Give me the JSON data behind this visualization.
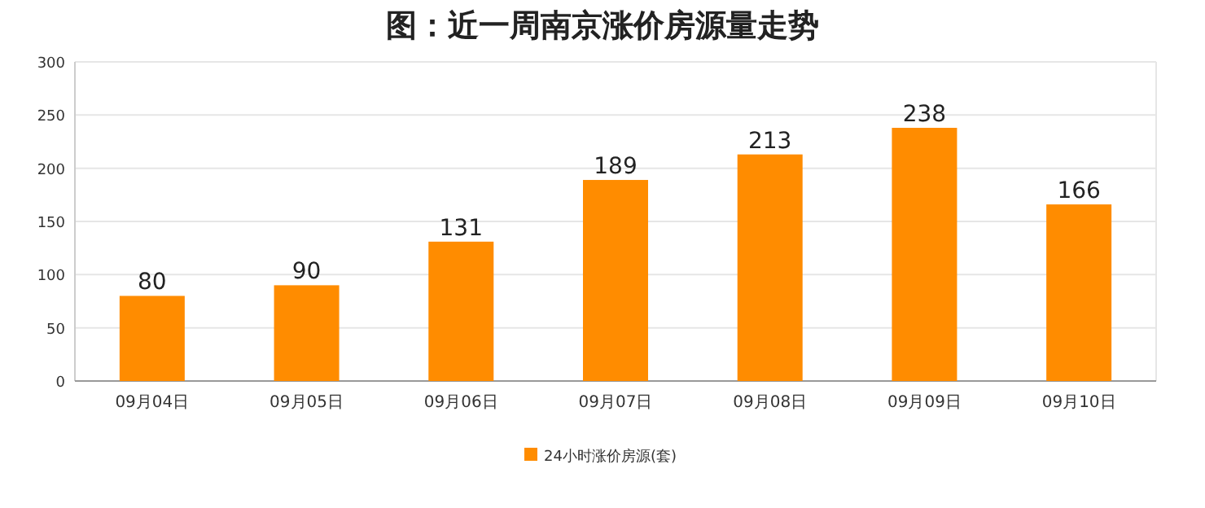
{
  "chart_data": {
    "type": "bar",
    "title": "图：近一周南京涨价房源量走势",
    "categories": [
      "09月04日",
      "09月05日",
      "09月06日",
      "09月07日",
      "09月08日",
      "09月09日",
      "09月10日"
    ],
    "series": [
      {
        "name": "24小时涨价房源(套)",
        "color": "#ff8c00",
        "values": [
          80,
          90,
          131,
          189,
          213,
          238,
          166
        ]
      }
    ],
    "ylim": [
      0,
      300
    ],
    "yticks": [
      0,
      50,
      100,
      150,
      200,
      250,
      300
    ],
    "grid": "y",
    "legend": "bottom",
    "data_labels": true
  }
}
